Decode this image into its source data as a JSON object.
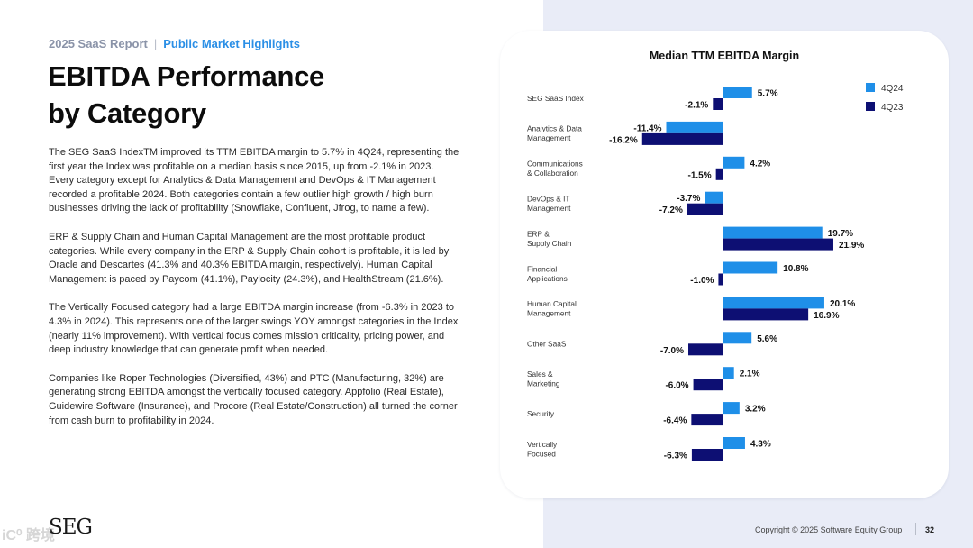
{
  "header": {
    "eyebrow_left": "2025 SaaS Report",
    "eyebrow_sep": "|",
    "eyebrow_right": "Public Market Highlights",
    "title_line1": "EBITDA Performance",
    "title_line2": "by Category"
  },
  "body": {
    "paragraphs": [
      "The SEG SaaS IndexTM improved its TTM EBITDA margin to 5.7% in 4Q24, representing the first year the Index was profitable on a median basis since 2015, up from -2.1% in 2023. Every category except for Analytics & Data Management and DevOps & IT Management recorded a profitable 2024. Both categories contain a few outlier high growth / high burn businesses driving the lack of profitability (Snowflake, Confluent, Jfrog, to name a few).",
      "ERP & Supply Chain and Human Capital Management are the most profitable product categories. While every company in the ERP & Supply Chain cohort is profitable, it is led by Oracle and Descartes (41.3% and 40.3% EBITDA margin, respectively). Human Capital Management is paced by Paycom (41.1%), Paylocity (24.3%), and HealthStream (21.6%).",
      "The Vertically Focused category had a large EBITDA margin increase (from -6.3% in 2023 to 4.3% in 2024). This represents one of the larger swings YOY amongst categories in the Index (nearly 11% improvement). With vertical focus comes mission criticality, pricing power, and deep industry knowledge that can generate profit when needed.",
      "Companies like Roper Technologies (Diversified, 43%) and PTC (Manufacturing, 32%) are generating strong EBITDA amongst the vertically focused category. Appfolio (Real Estate), Guidewire Software (Insurance), and Procore (Real Estate/Construction) all turned the corner from cash burn to profitability in 2024."
    ]
  },
  "chart_data": {
    "type": "bar",
    "orientation": "horizontal",
    "title": "Median TTM EBITDA Margin",
    "categories": [
      [
        "SEG SaaS Index"
      ],
      [
        "Analytics & Data",
        "Management"
      ],
      [
        "Communications",
        "& Collaboration"
      ],
      [
        "DevOps & IT",
        "Management"
      ],
      [
        "ERP &",
        "Supply Chain"
      ],
      [
        "Financial",
        "Applications"
      ],
      [
        "Human Capital",
        "Management"
      ],
      [
        "Other SaaS"
      ],
      [
        "Sales &",
        "Marketing"
      ],
      [
        "Security"
      ],
      [
        "Vertically",
        "Focused"
      ]
    ],
    "series": [
      {
        "name": "4Q24",
        "color": "#1f8fe8",
        "values": [
          5.7,
          -11.4,
          4.2,
          -3.7,
          19.7,
          10.8,
          20.1,
          5.6,
          2.1,
          3.2,
          4.3
        ],
        "labels": [
          "5.7%",
          "-11.4%",
          "4.2%",
          "-3.7%",
          "19.7%",
          "10.8%",
          "20.1%",
          "5.6%",
          "2.1%",
          "3.2%",
          "4.3%"
        ]
      },
      {
        "name": "4Q23",
        "color": "#0d0f73",
        "values": [
          -2.1,
          -16.2,
          -1.5,
          -7.2,
          21.9,
          -1.0,
          16.9,
          -7.0,
          -6.0,
          -6.4,
          -6.3
        ],
        "labels": [
          "-2.1%",
          "-16.2%",
          "-1.5%",
          "-7.2%",
          "21.9%",
          "-1.0%",
          "16.9%",
          "-7.0%",
          "-6.0%",
          "-6.4%",
          "-6.3%"
        ]
      }
    ],
    "legend_position": "top-right",
    "grid": false
  },
  "footer": {
    "copyright": "Copyright © 2025 Software Equity Group",
    "page": "32",
    "logo": "SEG",
    "watermark": "iC⁰ 跨境"
  }
}
